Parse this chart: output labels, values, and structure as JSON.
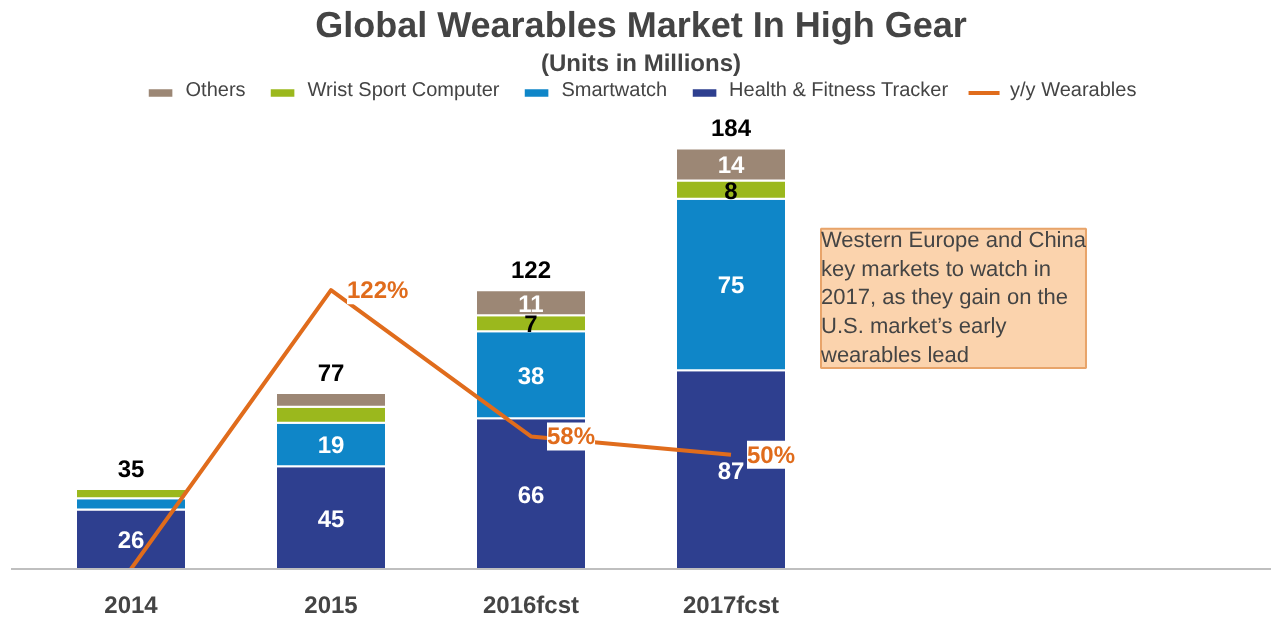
{
  "chart_data": {
    "type": "bar",
    "title": "Global Wearables Market In High Gear",
    "subtitle": "(Units in Millions)",
    "categories": [
      "2014",
      "2015",
      "2016fcst",
      "2017fcst"
    ],
    "stacked": true,
    "legend": "top",
    "series": [
      {
        "name": "Health & Fitness Tracker",
        "color": "#2e3f8f",
        "values": [
          26,
          45,
          66,
          87
        ],
        "value_labels": [
          "26",
          "45",
          "66",
          "87"
        ]
      },
      {
        "name": "Smartwatch",
        "color": "#0f86c8",
        "values": [
          5,
          19,
          38,
          75
        ],
        "value_labels": [
          null,
          "19",
          "38",
          "75"
        ]
      },
      {
        "name": "Wrist Sport Computer",
        "color": "#9bb81d",
        "values": [
          4,
          7,
          7,
          8
        ],
        "value_labels": [
          null,
          null,
          "7",
          "8"
        ]
      },
      {
        "name": "Others",
        "color": "#9c8775",
        "values": [
          null,
          6,
          11,
          14
        ],
        "value_labels": [
          null,
          null,
          "11",
          "14"
        ]
      },
      {
        "name": "y/y Wearables",
        "type": "line",
        "color": "#e06c1c",
        "values": [
          0,
          122,
          58,
          50
        ],
        "value_labels": [
          null,
          "122%",
          "58%",
          "50%"
        ]
      }
    ],
    "totals": [
      "35",
      "77",
      "122",
      "184"
    ],
    "annotations": [
      "Western Europe and China key markets to watch in 2017, as they gain on the U.S. market’s early wearables lead"
    ]
  }
}
